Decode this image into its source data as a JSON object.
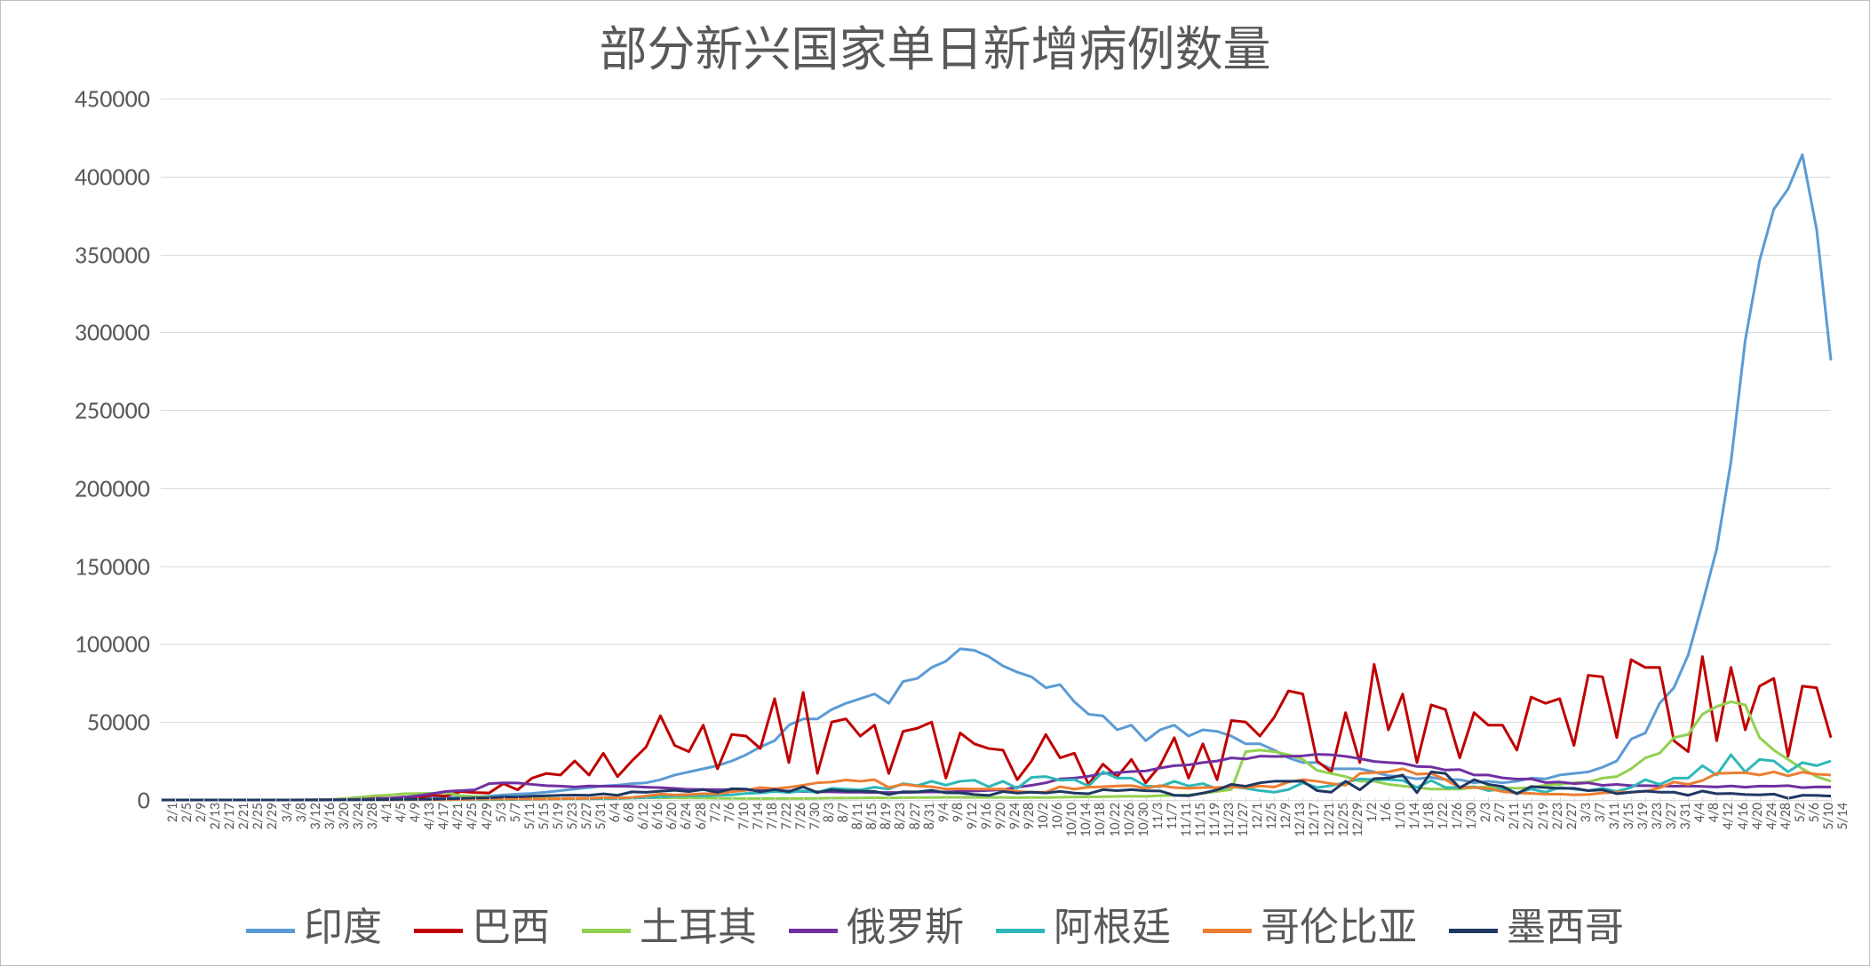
{
  "chart": {
    "type": "line",
    "title": "部分新兴国家单日新增病例数量",
    "title_fontsize": 54,
    "background_color": "#ffffff",
    "border_color": "#bfbfbf",
    "grid_color": "#d9d9d9",
    "axis_label_color": "#595959",
    "axis_label_fontsize": 28,
    "x_tick_fontsize": 16,
    "legend_fontsize": 44,
    "ylim": [
      0,
      450000
    ],
    "ytick_step": 50000,
    "y_ticks": [
      0,
      50000,
      100000,
      150000,
      200000,
      250000,
      300000,
      350000,
      400000,
      450000
    ],
    "line_width": 3,
    "x_labels": [
      "2/1",
      "2/5",
      "2/9",
      "2/13",
      "2/17",
      "2/21",
      "2/25",
      "2/29",
      "3/4",
      "3/8",
      "3/12",
      "3/16",
      "3/20",
      "3/24",
      "3/28",
      "4/1",
      "4/5",
      "4/9",
      "4/13",
      "4/17",
      "4/21",
      "4/25",
      "4/29",
      "5/3",
      "5/7",
      "5/11",
      "5/15",
      "5/19",
      "5/23",
      "5/27",
      "5/31",
      "6/4",
      "6/8",
      "6/12",
      "6/16",
      "6/20",
      "6/24",
      "6/28",
      "7/2",
      "7/6",
      "7/10",
      "7/14",
      "7/18",
      "7/22",
      "7/26",
      "7/30",
      "8/3",
      "8/7",
      "8/11",
      "8/15",
      "8/19",
      "8/23",
      "8/27",
      "8/31",
      "9/4",
      "9/8",
      "9/12",
      "9/16",
      "9/20",
      "9/24",
      "9/28",
      "10/2",
      "10/6",
      "10/10",
      "10/14",
      "10/18",
      "10/22",
      "10/26",
      "10/30",
      "11/3",
      "11/7",
      "11/11",
      "11/15",
      "11/19",
      "11/23",
      "11/27",
      "12/1",
      "12/5",
      "12/9",
      "12/13",
      "12/17",
      "12/21",
      "12/25",
      "12/29",
      "1/2",
      "1/6",
      "1/10",
      "1/14",
      "1/18",
      "1/22",
      "1/26",
      "1/30",
      "2/3",
      "2/7",
      "2/11",
      "2/15",
      "2/19",
      "2/23",
      "2/27",
      "3/3",
      "3/7",
      "3/11",
      "3/15",
      "3/19",
      "3/23",
      "3/27",
      "3/31",
      "4/4",
      "4/8",
      "4/12",
      "4/16",
      "4/20",
      "4/24",
      "4/28",
      "5/2",
      "5/6",
      "5/10",
      "5/14"
    ],
    "series": [
      {
        "name": "印度",
        "label": "印度",
        "color": "#5b9bd5",
        "values": [
          0,
          0,
          0,
          0,
          0,
          0,
          0,
          0,
          0,
          0,
          0,
          50,
          100,
          150,
          300,
          500,
          700,
          900,
          1000,
          1200,
          1500,
          1800,
          2000,
          2500,
          3200,
          3800,
          4200,
          5000,
          6000,
          7000,
          8000,
          9000,
          9500,
          10500,
          11000,
          13000,
          16000,
          18000,
          20000,
          22000,
          25000,
          29000,
          34000,
          38000,
          48000,
          52000,
          52000,
          58000,
          62000,
          65000,
          68000,
          62000,
          76000,
          78000,
          85000,
          89000,
          97000,
          96000,
          92000,
          86000,
          82000,
          79000,
          72000,
          74000,
          63000,
          55000,
          54000,
          45000,
          48000,
          38000,
          45000,
          48000,
          41000,
          45000,
          44000,
          41000,
          36000,
          36000,
          32000,
          27000,
          24000,
          24000,
          20000,
          20000,
          20000,
          18000,
          15500,
          15000,
          13500,
          14500,
          13000,
          13000,
          11000,
          12000,
          11000,
          12000,
          14000,
          13500,
          16000,
          17000,
          18000,
          21000,
          25000,
          39000,
          43000,
          62000,
          72000,
          93000,
          126000,
          161000,
          217000,
          295000,
          346000,
          379000,
          392000,
          414000,
          366000,
          282000
        ]
      },
      {
        "name": "巴西",
        "label": "巴西",
        "color": "#c00000",
        "values": [
          0,
          0,
          0,
          0,
          0,
          0,
          0,
          0,
          0,
          0,
          50,
          100,
          300,
          500,
          800,
          1100,
          1000,
          1900,
          1500,
          3000,
          2500,
          5400,
          4800,
          4500,
          10500,
          6500,
          14000,
          17000,
          16000,
          25000,
          16000,
          30000,
          15000,
          25000,
          34000,
          54000,
          35000,
          31000,
          48000,
          20000,
          42000,
          41000,
          33000,
          65000,
          24000,
          69000,
          17000,
          50000,
          52000,
          41000,
          48000,
          17000,
          44000,
          46000,
          50000,
          14000,
          43000,
          36000,
          33000,
          32000,
          13000,
          25000,
          42000,
          27000,
          30000,
          10000,
          23000,
          15000,
          26000,
          11000,
          22000,
          40000,
          14000,
          36000,
          13000,
          51000,
          50000,
          41000,
          53000,
          70000,
          68000,
          25000,
          18000,
          56000,
          24000,
          87000,
          45000,
          68000,
          24000,
          61000,
          58000,
          27000,
          56000,
          48000,
          48000,
          32000,
          66000,
          62000,
          65000,
          35000,
          80000,
          79000,
          40000,
          90000,
          85000,
          85000,
          38000,
          31000,
          92000,
          38000,
          85000,
          45000,
          73000,
          78000,
          28000,
          73000,
          72000,
          40000
        ]
      },
      {
        "name": "土耳其",
        "label": "土耳其",
        "color": "#92d050",
        "values": [
          0,
          0,
          0,
          0,
          0,
          0,
          0,
          0,
          0,
          0,
          0,
          50,
          300,
          1000,
          1800,
          2700,
          3100,
          4000,
          4100,
          4300,
          4600,
          2800,
          2300,
          1800,
          1600,
          1600,
          1500,
          1100,
          900,
          900,
          800,
          900,
          900,
          1200,
          1400,
          1300,
          1400,
          1300,
          1200,
          1100,
          1000,
          950,
          930,
          920,
          920,
          930,
          990,
          1180,
          1200,
          1250,
          1400,
          1250,
          1450,
          1580,
          1600,
          1700,
          1700,
          1650,
          1630,
          1640,
          1500,
          1600,
          1600,
          1700,
          1900,
          2000,
          2100,
          2300,
          2400,
          2300,
          2800,
          3000,
          3200,
          4200,
          5500,
          6700,
          31000,
          32000,
          31000,
          29000,
          26000,
          19000,
          17000,
          15000,
          12000,
          12000,
          10000,
          9000,
          8000,
          7000,
          7000,
          7000,
          8000,
          8500,
          8000,
          7500,
          8000,
          9500,
          10000,
          11000,
          11500,
          14000,
          15000,
          20000,
          27000,
          30000,
          40000,
          42000,
          55000,
          60000,
          63000,
          61000,
          40000,
          32000,
          26000,
          20000,
          15000,
          12000
        ]
      },
      {
        "name": "俄罗斯",
        "label": "俄罗斯",
        "color": "#7030a0",
        "values": [
          0,
          0,
          0,
          0,
          0,
          0,
          0,
          0,
          0,
          0,
          20,
          50,
          100,
          300,
          500,
          800,
          1200,
          1700,
          2700,
          4000,
          5500,
          6000,
          6500,
          10500,
          11000,
          10900,
          10000,
          9200,
          8900,
          8300,
          9000,
          8800,
          8800,
          8700,
          8200,
          7900,
          7400,
          6800,
          6700,
          6600,
          6600,
          6400,
          6100,
          5800,
          5700,
          5500,
          5300,
          5200,
          5000,
          5000,
          4800,
          4800,
          4800,
          5000,
          5200,
          5100,
          5500,
          5800,
          6100,
          6600,
          8200,
          9400,
          11000,
          13500,
          14000,
          15200,
          17000,
          17600,
          18200,
          18600,
          20500,
          22000,
          22500,
          24000,
          25000,
          27000,
          26300,
          28100,
          27900,
          28000,
          28300,
          29300,
          29000,
          28000,
          26500,
          24700,
          24000,
          23500,
          21500,
          21200,
          19200,
          19500,
          16000,
          16000,
          14200,
          13400,
          13500,
          11200,
          11500,
          10500,
          11000,
          9400,
          10000,
          9200,
          9200,
          9000,
          8800,
          9000,
          8700,
          8300,
          9000,
          8200,
          8900,
          8800,
          9200,
          7900,
          8400,
          8300
        ]
      },
      {
        "name": "阿根廷",
        "label": "阿根廷",
        "color": "#2eb8b8",
        "values": [
          0,
          0,
          0,
          0,
          0,
          0,
          0,
          0,
          0,
          0,
          20,
          30,
          90,
          120,
          100,
          100,
          80,
          100,
          120,
          150,
          120,
          150,
          130,
          180,
          200,
          250,
          400,
          500,
          700,
          750,
          800,
          900,
          900,
          1200,
          1500,
          2000,
          2500,
          2800,
          2600,
          3000,
          3300,
          4200,
          4500,
          5500,
          4800,
          5900,
          4800,
          7500,
          7000,
          6500,
          8200,
          7000,
          10500,
          9200,
          12000,
          9500,
          12000,
          12700,
          8500,
          12000,
          7500,
          14500,
          15000,
          12700,
          13000,
          9000,
          18000,
          14000,
          14000,
          9000,
          8500,
          12000,
          9000,
          10500,
          7000,
          8500,
          7500,
          6000,
          5000,
          6700,
          11000,
          8000,
          9200,
          11200,
          13500,
          13000,
          13000,
          12500,
          8000,
          12500,
          8000,
          8000,
          8500,
          6000,
          7000,
          4500,
          7000,
          5000,
          8000,
          7000,
          6000,
          7500,
          5500,
          8000,
          13000,
          10000,
          14000,
          14000,
          22000,
          16000,
          29000,
          18000,
          26000,
          25000,
          18000,
          24000,
          22000,
          25000
        ]
      },
      {
        "name": "哥伦比亚",
        "label": "哥伦比亚",
        "color": "#ed7d31",
        "values": [
          0,
          0,
          0,
          0,
          0,
          0,
          0,
          0,
          0,
          0,
          10,
          30,
          50,
          80,
          120,
          150,
          130,
          170,
          180,
          200,
          180,
          250,
          500,
          550,
          600,
          650,
          600,
          650,
          800,
          1000,
          1000,
          1500,
          1300,
          1600,
          2500,
          3800,
          3200,
          3500,
          4000,
          4000,
          5300,
          6200,
          8000,
          7200,
          8100,
          9500,
          11000,
          11500,
          12800,
          12000,
          13000,
          8000,
          10000,
          9000,
          8500,
          7000,
          7200,
          7000,
          7000,
          7000,
          5500,
          5000,
          5000,
          8500,
          7000,
          8200,
          8500,
          9000,
          9200,
          7500,
          9200,
          8000,
          7500,
          8000,
          8000,
          8500,
          8000,
          9000,
          8300,
          11500,
          13000,
          12000,
          10500,
          9500,
          17000,
          17500,
          18000,
          20000,
          16500,
          17000,
          13000,
          8000,
          8000,
          7300,
          5400,
          4500,
          4200,
          3700,
          3800,
          3300,
          3500,
          4500,
          5000,
          5000,
          5500,
          7800,
          11500,
          10000,
          12500,
          17000,
          17300,
          17500,
          16000,
          18000,
          15500,
          17800,
          16500,
          16000
        ]
      },
      {
        "name": "墨西哥",
        "label": "墨西哥",
        "color": "#1f3864",
        "values": [
          0,
          0,
          0,
          0,
          0,
          0,
          0,
          0,
          0,
          0,
          10,
          30,
          80,
          120,
          150,
          200,
          250,
          400,
          400,
          500,
          700,
          1000,
          1300,
          1400,
          1900,
          2000,
          2400,
          2700,
          3000,
          3100,
          3000,
          3900,
          3000,
          5200,
          4900,
          5600,
          6200,
          5400,
          6700,
          4900,
          7200,
          7000,
          5300,
          6700,
          5400,
          8400,
          4800,
          6500,
          5800,
          5600,
          5500,
          3500,
          5300,
          5200,
          6200,
          4600,
          4500,
          3500,
          2900,
          5400,
          4400,
          5000,
          4500,
          5500,
          4400,
          4000,
          6600,
          6000,
          6600,
          5900,
          5800,
          3000,
          2700,
          4400,
          6400,
          10000,
          8800,
          11000,
          12000,
          12000,
          12000,
          6000,
          5000,
          12000,
          6500,
          13700,
          14000,
          16000,
          4700,
          18000,
          17000,
          7800,
          13000,
          10000,
          8600,
          4000,
          8600,
          8000,
          7500,
          7500,
          6000,
          6500,
          4000,
          5000,
          5700,
          5000,
          5000,
          3000,
          5700,
          4000,
          4200,
          3500,
          3300,
          3800,
          1000,
          3000,
          2900,
          2500
        ]
      }
    ]
  }
}
